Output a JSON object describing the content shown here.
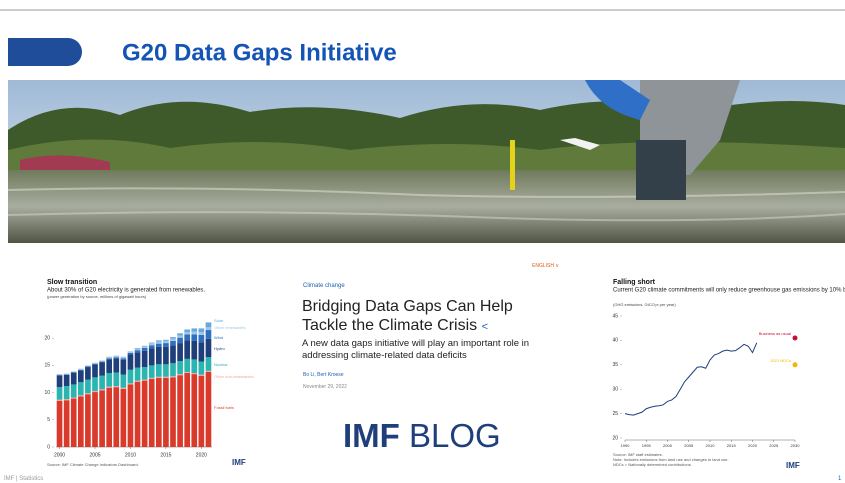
{
  "header": {
    "title": "G20 Data Gaps Initiative"
  },
  "article": {
    "language": "ENGLISH",
    "topic": "Climate change",
    "title": "Bridging Data Gaps Can Help Tackle the Climate Crisis",
    "summary": "A new data gaps initiative will play an important role in addressing climate-related data deficits",
    "authors": "Bo Li, Bert Kroese",
    "date": "November 29, 2022"
  },
  "blog_logo": {
    "brand": "IMF",
    "name": "BLOG"
  },
  "footer": {
    "text": "IMF | Statistics",
    "page": "1"
  },
  "charts": [
    {
      "type": "bar",
      "stacked": true,
      "title": "Slow transition",
      "subtitle": "About 30% of G20 electricity is generated from renewables.",
      "note": "(power generation by source, millions of gigawatt hours)",
      "source": "Source: IMF Climate Change Indicators Dashboard.",
      "logo": "IMF",
      "categories": [
        2000,
        2001,
        2002,
        2003,
        2004,
        2005,
        2006,
        2007,
        2008,
        2009,
        2010,
        2011,
        2012,
        2013,
        2014,
        2015,
        2016,
        2017,
        2018,
        2019,
        2020,
        2021
      ],
      "xticks": [
        2000,
        2005,
        2010,
        2015,
        2020
      ],
      "ylim": [
        0,
        25
      ],
      "yticks": [
        0,
        5,
        10,
        15,
        20
      ],
      "series": [
        {
          "name": "Fossil fuels",
          "color": "#d93a2b",
          "values": [
            8.5,
            8.6,
            8.9,
            9.3,
            9.7,
            10.1,
            10.4,
            10.9,
            11.0,
            10.7,
            11.5,
            12.0,
            12.2,
            12.5,
            12.7,
            12.7,
            12.8,
            13.2,
            13.6,
            13.4,
            13.1,
            13.8
          ]
        },
        {
          "name": "Other non-renewables",
          "color": "#f0a8a0",
          "values": [
            0.2,
            0.2,
            0.2,
            0.2,
            0.2,
            0.2,
            0.2,
            0.2,
            0.2,
            0.2,
            0.2,
            0.2,
            0.2,
            0.2,
            0.2,
            0.2,
            0.2,
            0.2,
            0.2,
            0.2,
            0.2,
            0.2
          ]
        },
        {
          "name": "Nuclear",
          "color": "#2bb5b0",
          "values": [
            2.3,
            2.4,
            2.4,
            2.4,
            2.5,
            2.5,
            2.5,
            2.5,
            2.5,
            2.4,
            2.5,
            2.4,
            2.3,
            2.3,
            2.3,
            2.3,
            2.4,
            2.4,
            2.4,
            2.5,
            2.4,
            2.5
          ]
        },
        {
          "name": "Hydro",
          "color": "#1f3f7a",
          "values": [
            2.2,
            2.1,
            2.2,
            2.2,
            2.3,
            2.4,
            2.5,
            2.5,
            2.6,
            2.7,
            2.8,
            2.8,
            3.0,
            3.1,
            3.2,
            3.2,
            3.3,
            3.3,
            3.4,
            3.4,
            3.5,
            3.4
          ]
        },
        {
          "name": "Wind",
          "color": "#2f6fc0",
          "values": [
            0,
            0,
            0,
            0.1,
            0.1,
            0.1,
            0.1,
            0.2,
            0.2,
            0.3,
            0.3,
            0.4,
            0.5,
            0.6,
            0.6,
            0.7,
            0.8,
            1.0,
            1.1,
            1.2,
            1.4,
            1.6
          ]
        },
        {
          "name": "Other renewables",
          "color": "#9ec8e8",
          "values": [
            0.2,
            0.2,
            0.2,
            0.2,
            0.2,
            0.2,
            0.2,
            0.3,
            0.3,
            0.3,
            0.3,
            0.3,
            0.3,
            0.4,
            0.4,
            0.4,
            0.4,
            0.4,
            0.4,
            0.5,
            0.5,
            0.5
          ]
        },
        {
          "name": "Solar",
          "color": "#6aa8dc",
          "values": [
            0,
            0,
            0,
            0,
            0,
            0,
            0,
            0,
            0,
            0,
            0,
            0.1,
            0.1,
            0.1,
            0.2,
            0.2,
            0.3,
            0.4,
            0.5,
            0.6,
            0.7,
            0.9
          ]
        }
      ]
    },
    {
      "type": "line",
      "title": "Falling short",
      "subtitle": "Current G20 climate commitments will only reduce greenhouse gas emissions by 10% by 2030.",
      "note": "(GHG emissions, GtCO₂e per year)",
      "sources": [
        "Source: IMF staff estimates.",
        "Note: Includes emissions from land use and changes to land use.",
        "NDCs = Nationally determined contributions."
      ],
      "logo": "IMF",
      "color": "#1f3f7a",
      "x": [
        1990,
        1991,
        1992,
        1993,
        1994,
        1995,
        1996,
        1997,
        1998,
        1999,
        2000,
        2001,
        2002,
        2003,
        2004,
        2005,
        2006,
        2007,
        2008,
        2009,
        2010,
        2011,
        2012,
        2013,
        2014,
        2015,
        2016,
        2017,
        2018,
        2019,
        2020,
        2021
      ],
      "values": [
        25,
        24.8,
        24.7,
        25.0,
        25.3,
        26,
        26.3,
        26.5,
        26.6,
        26.8,
        27.5,
        27.8,
        28.5,
        30,
        31.5,
        32.5,
        33.5,
        34.5,
        34.6,
        34.3,
        36,
        37,
        37.3,
        37.8,
        38,
        37.8,
        37.9,
        38.5,
        39.2,
        38.8,
        37.5,
        39.5
      ],
      "points": [
        {
          "name": "Business as usual",
          "x": 2030,
          "value": 40.5,
          "color": "#c8102e"
        },
        {
          "name": "2021 NDCs",
          "x": 2030,
          "value": 35,
          "color": "#f2b705"
        }
      ],
      "xlim": [
        1990,
        2030
      ],
      "xticks": [
        1990,
        1995,
        2000,
        2005,
        2010,
        2015,
        2020,
        2025,
        2030
      ],
      "ylim": [
        20,
        45
      ],
      "yticks": [
        20,
        25,
        30,
        35,
        40,
        45
      ]
    }
  ]
}
